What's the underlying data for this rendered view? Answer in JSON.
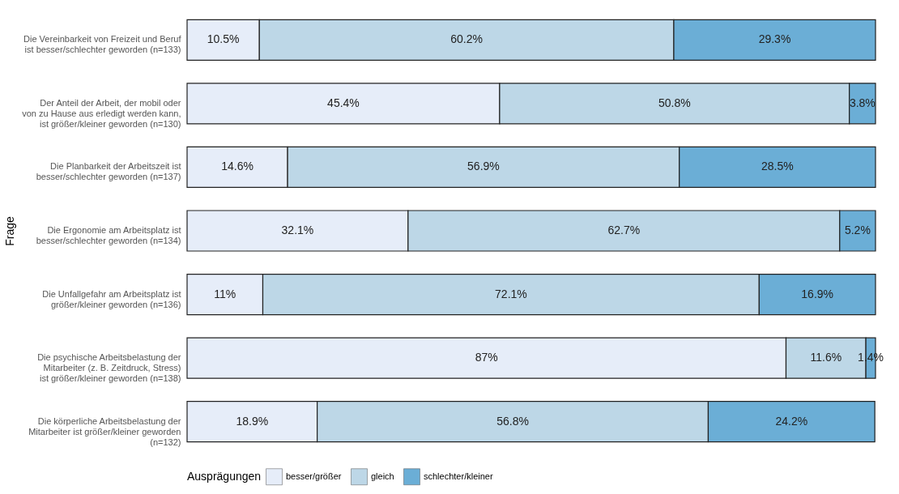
{
  "chart_data": {
    "type": "bar",
    "orientation": "horizontal",
    "stacked": true,
    "ylabel": "Frage",
    "legend_title": "Ausprägungen",
    "legend": "bottom",
    "grid": false,
    "tick_labels": "y",
    "xlim": [
      0,
      100
    ],
    "categories": [
      "Die Vereinbarkeit von Freizeit und Beruf\nist besser/schlechter geworden (n=133)",
      "Der Anteil der Arbeit, der mobil oder\nvon zu Hause aus erledigt werden kann,\nist größer/kleiner geworden (n=130)",
      "Die Planbarkeit der Arbeitszeit ist\nbesser/schlechter geworden (n=137)",
      "Die Ergonomie am Arbeitsplatz ist\nbesser/schlechter geworden (n=134)",
      "Die Unfallgefahr am Arbeitsplatz ist\ngrößer/kleiner geworden (n=136)",
      "Die psychische Arbeitsbelastung der\nMitarbeiter (z. B. Zeitdruck, Stress)\nist größer/kleiner geworden (n=138)",
      "Die körperliche Arbeitsbelastung der\nMitarbeiter ist größer/kleiner geworden\n(n=132)"
    ],
    "series": [
      {
        "name": "besser/größer",
        "color": "#e6edf9",
        "values": [
          10.5,
          45.4,
          14.6,
          32.1,
          11,
          87,
          18.9
        ],
        "value_labels": [
          "10.5%",
          "45.4%",
          "14.6%",
          "32.1%",
          "11%",
          "87%",
          "18.9%"
        ]
      },
      {
        "name": "gleich",
        "color": "#bdd7e7",
        "values": [
          60.2,
          50.8,
          56.9,
          62.7,
          72.1,
          11.6,
          56.8
        ],
        "value_labels": [
          "60.2%",
          "50.8%",
          "56.9%",
          "62.7%",
          "72.1%",
          "11.6%",
          "56.8%"
        ]
      },
      {
        "name": "schlechter/kleiner",
        "color": "#6baed6",
        "values": [
          29.3,
          3.8,
          28.5,
          5.2,
          16.9,
          1.4,
          24.2
        ],
        "value_labels": [
          "29.3%",
          "3.8%",
          "28.5%",
          "5.2%",
          "16.9%",
          "1.4%",
          "24.2%"
        ]
      }
    ]
  }
}
